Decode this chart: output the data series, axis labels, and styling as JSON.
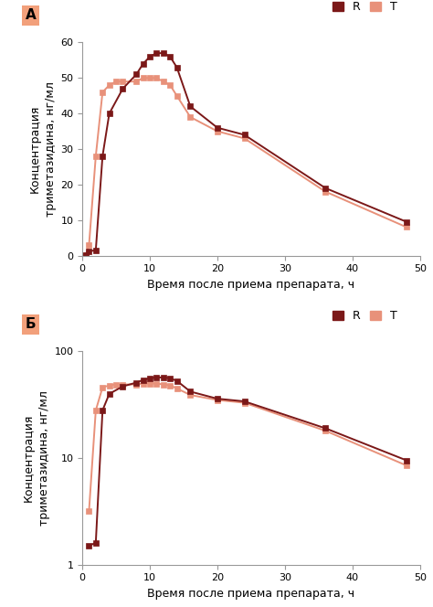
{
  "panel_A": {
    "label": "А",
    "R_x": [
      0,
      0.5,
      1,
      2,
      3,
      4,
      6,
      8,
      9,
      10,
      11,
      12,
      13,
      14,
      16,
      20,
      24,
      36,
      48
    ],
    "R_y": [
      0,
      0.2,
      1.2,
      1.5,
      28,
      40,
      47,
      51,
      54,
      56,
      57,
      57,
      56,
      53,
      42,
      36,
      34,
      19,
      9.5
    ],
    "T_x": [
      0,
      0.5,
      1,
      2,
      3,
      4,
      5,
      6,
      8,
      9,
      10,
      11,
      12,
      13,
      14,
      16,
      20,
      24,
      36,
      48
    ],
    "T_y": [
      0,
      0.1,
      3,
      28,
      46,
      48,
      49,
      49,
      49,
      50,
      50,
      50,
      49,
      48,
      45,
      39,
      35,
      33,
      18,
      8
    ],
    "ylabel": "Концентрация\nтриметазидина, нг/мл",
    "xlabel": "Время после приема препарата, ч",
    "ylim": [
      0,
      60
    ],
    "yticks": [
      0,
      10,
      20,
      30,
      40,
      50,
      60
    ],
    "xticks": [
      0,
      10,
      20,
      30,
      40,
      50
    ],
    "xmax": 50
  },
  "panel_B": {
    "label": "Б",
    "R_x": [
      1,
      2,
      3,
      4,
      6,
      8,
      9,
      10,
      11,
      12,
      13,
      14,
      16,
      20,
      24,
      36,
      48
    ],
    "R_y": [
      1.5,
      1.6,
      28,
      40,
      47,
      51,
      54,
      56,
      57,
      57,
      56,
      53,
      42,
      36,
      34,
      19,
      9.5
    ],
    "T_x": [
      1,
      2,
      3,
      4,
      5,
      6,
      8,
      9,
      10,
      11,
      12,
      13,
      14,
      16,
      20,
      24,
      36,
      48
    ],
    "T_y": [
      3.2,
      28,
      46,
      48,
      49,
      49,
      49,
      50,
      50,
      50,
      49,
      48,
      45,
      39,
      35,
      33,
      18,
      8.5
    ],
    "ylabel": "Концентрация\nтриметазидина, нг/мл",
    "xlabel": "Время после приема препарата, ч",
    "ylim_log": [
      1,
      100
    ],
    "yticks_log": [
      1,
      10,
      100
    ],
    "xticks": [
      0,
      10,
      20,
      30,
      40,
      50
    ],
    "xmax": 50
  },
  "R_color": "#7B1818",
  "T_color": "#E8917A",
  "marker": "s",
  "marker_size": 4,
  "line_width": 1.4,
  "legend_R": "R",
  "legend_T": "T",
  "label_bg_color": "#F2A07B",
  "fig_bg": "#FFFFFF",
  "tick_fontsize": 8,
  "label_fontsize": 9
}
